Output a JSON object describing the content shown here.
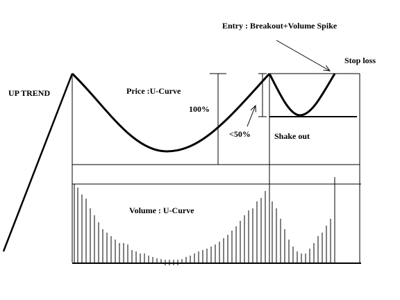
{
  "labels": {
    "uptrend": "UP TREND",
    "price": "Price :U-Curve",
    "depth": "100%",
    "handle_depth": "<50%",
    "shakeout": "Shake out",
    "entry": "Entry : Breakout+Volume Spike",
    "stoploss": "Stop loss",
    "volume": "Volume : U-Curve"
  }
}
